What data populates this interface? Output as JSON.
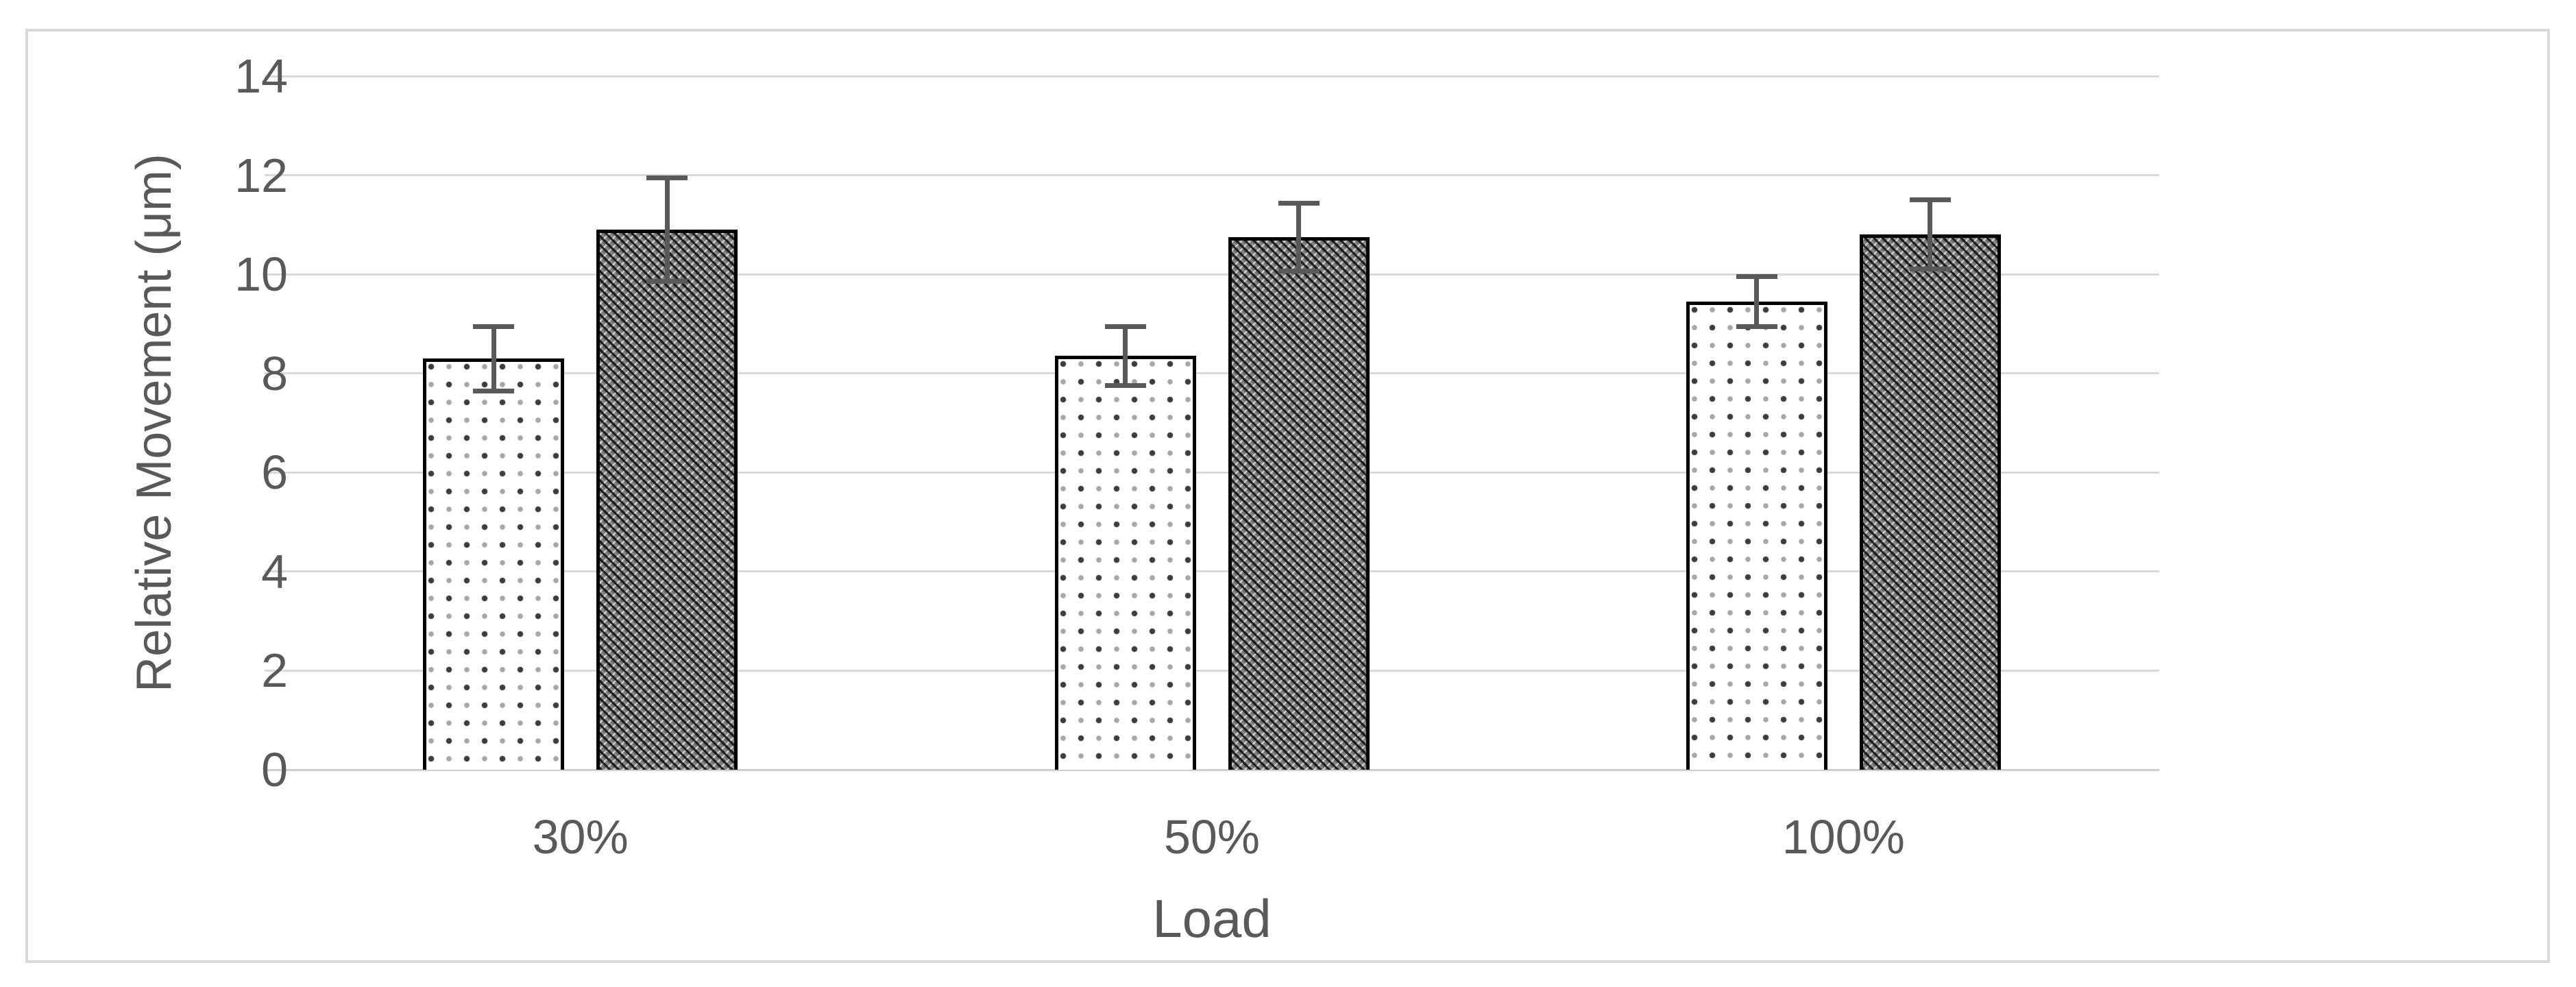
{
  "chart_data": {
    "type": "bar",
    "title": "",
    "xlabel": "Load",
    "ylabel": "Relative Movement (μm)",
    "categories": [
      "30%",
      "50%",
      "100%"
    ],
    "series": [
      {
        "name": "light-dotted-series",
        "pattern": "fine-dot-grid",
        "values": [
          8.3,
          8.35,
          9.45
        ],
        "errors": [
          0.65,
          0.6,
          0.5
        ]
      },
      {
        "name": "dark-patterned-series",
        "pattern": "dark-weave",
        "values": [
          10.9,
          10.75,
          10.8
        ],
        "errors": [
          1.05,
          0.68,
          0.7
        ]
      }
    ],
    "ylim": [
      0,
      14
    ],
    "yticks": [
      0,
      2,
      4,
      6,
      8,
      10,
      12,
      14
    ],
    "grid": true,
    "legend": "none",
    "colors": {
      "text": "#595959",
      "gridline": "#d9d9d9",
      "bar_outline": "#000000",
      "figure_border": "#d9d9d9",
      "error_bar": "#595959"
    }
  }
}
